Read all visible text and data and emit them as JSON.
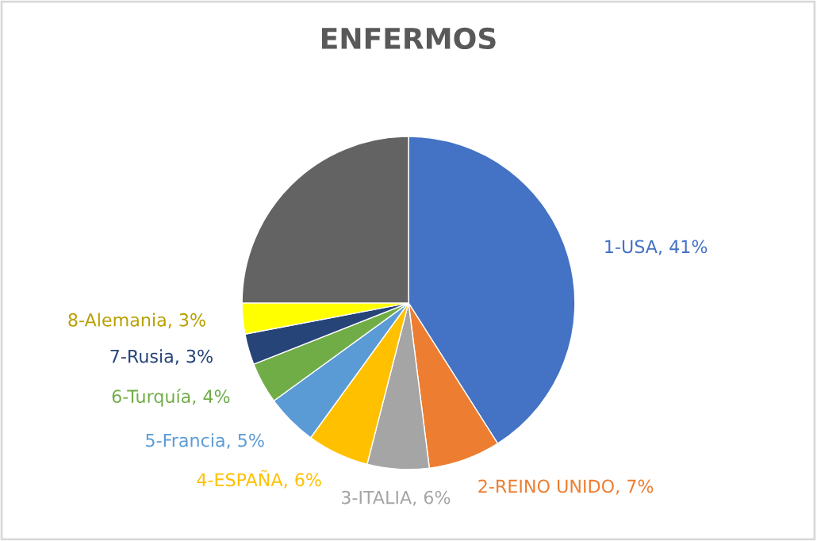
{
  "chart_data": {
    "type": "pie",
    "title": "ENFERMOS",
    "categories": [
      "1-USA",
      "2-REINO UNIDO",
      "3-ITALIA",
      "4-ESPAÑA",
      "5-Francia",
      "6-Turquía",
      "7-Rusia",
      "8-Alemania",
      null
    ],
    "values": [
      41,
      7,
      6,
      6,
      5,
      4,
      3,
      3,
      25
    ],
    "value_labels": [
      "41%",
      "7%",
      "6%",
      "6%",
      "5%",
      "4%",
      "3%",
      "3%",
      null
    ],
    "colors": [
      "#4472c4",
      "#ed7d31",
      "#a5a5a5",
      "#ffc000",
      "#5b9bd5",
      "#70ad47",
      "#264478",
      "#ffff00",
      "#636363"
    ],
    "legend": false
  }
}
